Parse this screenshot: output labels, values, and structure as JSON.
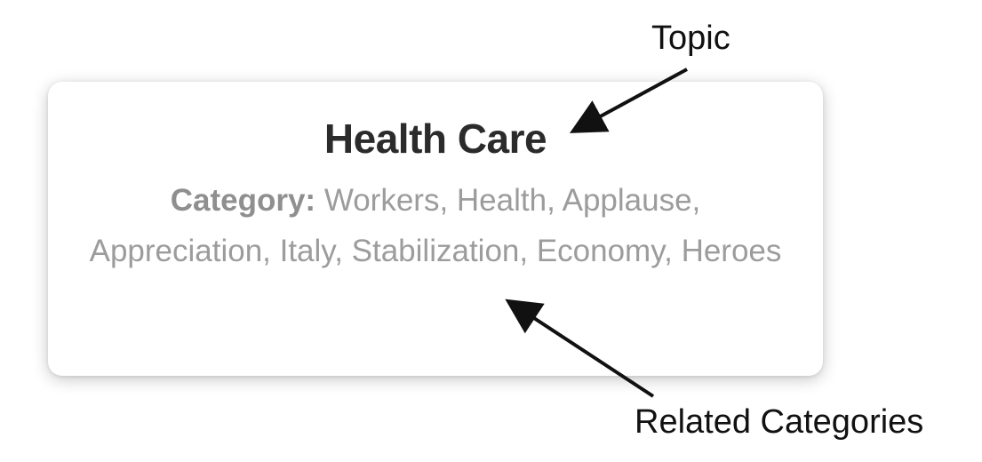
{
  "card": {
    "title": "Health Care",
    "category_label": "Category:",
    "category_values": " Workers, Health, Applause, Appreciation, Italy, Stabilization, Economy, Heroes"
  },
  "annotations": {
    "topic": "Topic",
    "related": "Related Categories"
  },
  "colors": {
    "title": "#2b2b2b",
    "categories": "#9c9c9c",
    "annotation": "#111111"
  }
}
